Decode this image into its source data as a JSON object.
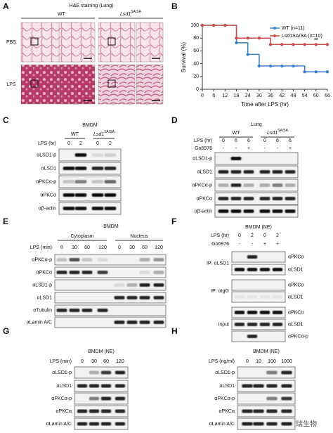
{
  "panel_a": {
    "letter": "A",
    "title": "H&E staining (Lung)",
    "columns": [
      "WT",
      {
        "gene": "Lsd1",
        "allele": "SA/SA"
      }
    ],
    "rows": [
      "PBS",
      "LPS"
    ]
  },
  "chart_data": {
    "type": "line",
    "panel_label": "B",
    "xlabel": "Time after LPS (hr)",
    "ylabel": "Survival (%)",
    "x": [
      0,
      6,
      12,
      18,
      24,
      30,
      36,
      42,
      48,
      54,
      60,
      66
    ],
    "series": [
      {
        "name": "WT (n=11)",
        "color": "#3b82c4",
        "values": [
          100,
          100,
          100,
          72.7,
          54.5,
          36.4,
          36.4,
          36.4,
          36.4,
          27.3,
          27.3,
          27.3
        ]
      },
      {
        "name": "Lsd1SA/SA (n=10)",
        "color": "#c8504a",
        "values": [
          100,
          100,
          100,
          80,
          80,
          80,
          70,
          70,
          70,
          70,
          70,
          70
        ]
      }
    ],
    "xlim": [
      0,
      66
    ],
    "xticks": [
      0,
      6,
      12,
      18,
      24,
      30,
      36,
      42,
      48,
      54,
      60,
      66
    ],
    "ylim": [
      0,
      100
    ],
    "yticks": [
      0,
      20,
      40,
      60,
      80,
      100
    ],
    "annotation": "**",
    "legend": "upper right"
  },
  "panel_c": {
    "letter": "C",
    "title": "BMDM",
    "groups": [
      "WT",
      {
        "gene": "Lsd1",
        "allele": "SA/SA"
      }
    ],
    "treatments": [
      {
        "label": "LPS (hr)",
        "lanes": [
          "0",
          "2",
          "0",
          "2"
        ]
      }
    ],
    "rows": [
      "αLSD1-p",
      "αLSD1",
      "αPKCα-p",
      "αPKCα",
      "αβ-actin"
    ]
  },
  "panel_d": {
    "letter": "D",
    "title": "Lung",
    "groups": [
      "WT",
      {
        "gene": "Lsd1",
        "allele": "SA/SA"
      }
    ],
    "treatments": [
      {
        "label": "LPS (hr)",
        "lanes": [
          "0",
          "6",
          "6",
          "0",
          "6",
          "6"
        ]
      },
      {
        "label": "Go6976",
        "lanes": [
          "-",
          "-",
          "+",
          "-",
          "-",
          "+"
        ]
      }
    ],
    "rows": [
      "αLSD1-p",
      "αLSD1",
      "αPKCα-p",
      "αPKCα",
      "αβ-actin"
    ]
  },
  "panel_e": {
    "letter": "E",
    "title": "BMDM",
    "groups": [
      "Cytoplasm",
      "Nucleus"
    ],
    "treatments": [
      {
        "label": "LPS (min)",
        "lanes": [
          "0",
          "30",
          "60",
          "120",
          "0",
          "30",
          "60",
          "120"
        ]
      }
    ],
    "rows": [
      "αPKCα-p",
      "αPKCα",
      "αLSD1-p",
      "αLSD1",
      "αTubulin",
      "αLamin A/C"
    ]
  },
  "panel_f": {
    "letter": "F",
    "title": "BMDM (NE)",
    "treatments": [
      {
        "label": "LPS (hr)",
        "lanes": [
          "0",
          "2",
          "0",
          "2"
        ]
      },
      {
        "label": "Go6976",
        "lanes": [
          "-",
          "-",
          "+",
          "+"
        ]
      }
    ],
    "sections": [
      {
        "label": "IP: αLSD1",
        "rows": [
          "αPKCα",
          "αLSD1"
        ]
      },
      {
        "label": "IP: αIgG",
        "rows": [
          "αPKCα",
          "αLSD1"
        ]
      },
      {
        "label": "Input",
        "rows": [
          "αPKCα",
          "αLSD1",
          "αPKCα-p"
        ]
      }
    ]
  },
  "panel_g": {
    "letter": "G",
    "title": "BMDM (NE)",
    "treatments": [
      {
        "label": "LPS (min)",
        "lanes": [
          "0",
          "30",
          "60",
          "120"
        ]
      }
    ],
    "rows": [
      "αLSD1-p",
      "αLSD1",
      "αPKCα-p",
      "αPKCα",
      "αLamin A/C"
    ]
  },
  "panel_h": {
    "letter": "H",
    "title": "BMDM (NE)",
    "treatments": [
      {
        "label": "LPS (ng/ml)",
        "lanes": [
          "0",
          "10",
          "100",
          "1000"
        ]
      }
    ],
    "rows": [
      "αLSD1-p",
      "αLSD1",
      "αPKCα-p",
      "αPKCα",
      "αLamin A/C"
    ]
  },
  "watermark": "鲸贝瑞生物"
}
